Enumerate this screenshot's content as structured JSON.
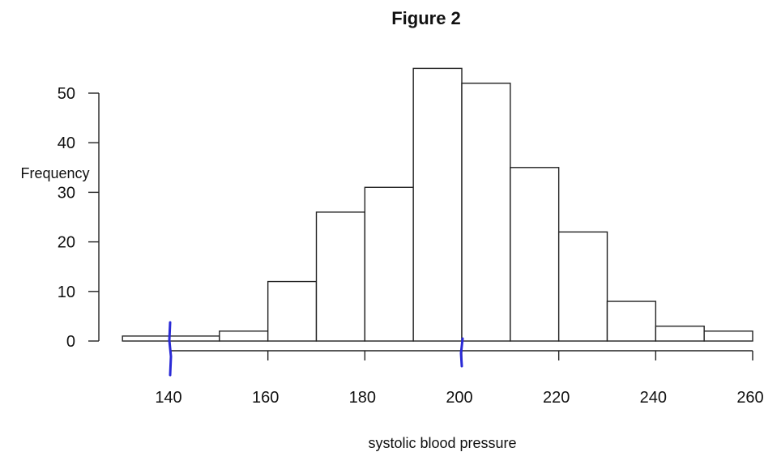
{
  "chart_data": {
    "type": "bar",
    "title": "Figure 2",
    "xlabel": "systolic blood pressure",
    "ylabel": "Frequency",
    "bins": [
      {
        "from": 130,
        "to": 150,
        "value": 1
      },
      {
        "from": 150,
        "to": 160,
        "value": 2
      },
      {
        "from": 160,
        "to": 170,
        "value": 12
      },
      {
        "from": 170,
        "to": 180,
        "value": 26
      },
      {
        "from": 180,
        "to": 190,
        "value": 31
      },
      {
        "from": 190,
        "to": 200,
        "value": 55
      },
      {
        "from": 200,
        "to": 210,
        "value": 52
      },
      {
        "from": 210,
        "to": 220,
        "value": 35
      },
      {
        "from": 220,
        "to": 230,
        "value": 22
      },
      {
        "from": 230,
        "to": 240,
        "value": 8
      },
      {
        "from": 240,
        "to": 250,
        "value": 3
      },
      {
        "from": 250,
        "to": 260,
        "value": 2
      }
    ],
    "x_ticks": [
      "140",
      "160",
      "180",
      "200",
      "220",
      "240",
      "260"
    ],
    "y_ticks": [
      "0",
      "10",
      "20",
      "30",
      "40",
      "50"
    ],
    "xlim": [
      130,
      260
    ],
    "ylim": [
      0,
      55
    ],
    "grid": false,
    "annotations": [
      {
        "kind": "hand-drawn-mark",
        "x": 140,
        "color": "#2a2ad6"
      },
      {
        "kind": "hand-drawn-mark",
        "x": 200,
        "color": "#2a2ad6"
      }
    ]
  }
}
